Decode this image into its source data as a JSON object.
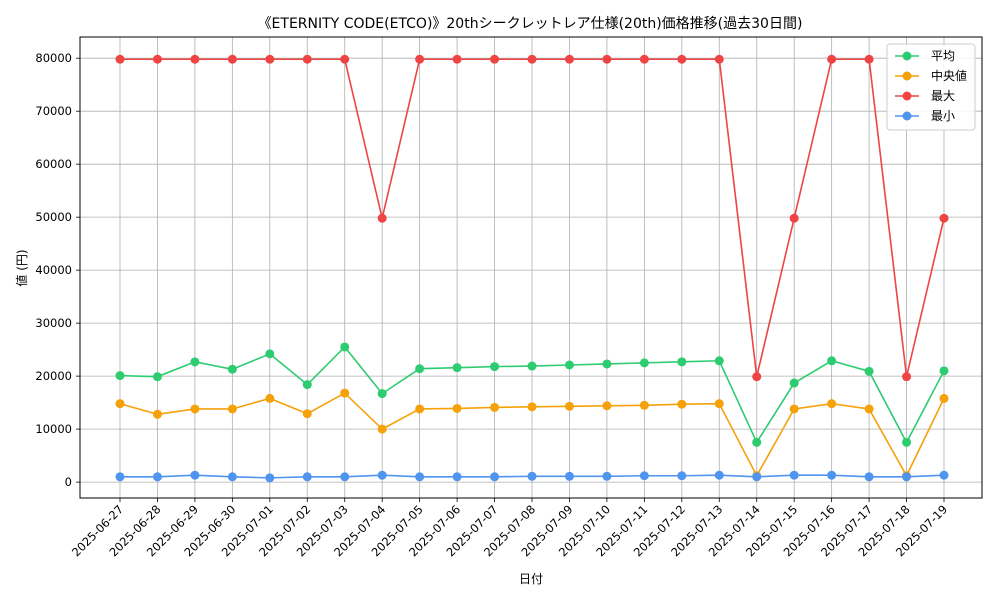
{
  "chart_data": {
    "type": "line",
    "title": "《ETERNITY CODE(ETCO)》20thシークレットレア仕様(20th)価格推移(過去30日間)",
    "xlabel": "日付",
    "ylabel": "値 (円)",
    "ylim": [
      -3000,
      84000
    ],
    "yticks": [
      0,
      10000,
      20000,
      30000,
      40000,
      50000,
      60000,
      70000,
      80000
    ],
    "grid": true,
    "legend_position": "top-right",
    "categories": [
      "2025-06-27",
      "2025-06-28",
      "2025-06-29",
      "2025-06-30",
      "2025-07-01",
      "2025-07-02",
      "2025-07-03",
      "2025-07-04",
      "2025-07-05",
      "2025-07-06",
      "2025-07-07",
      "2025-07-08",
      "2025-07-09",
      "2025-07-10",
      "2025-07-11",
      "2025-07-12",
      "2025-07-13",
      "2025-07-14",
      "2025-07-15",
      "2025-07-16",
      "2025-07-17",
      "2025-07-18",
      "2025-07-19"
    ],
    "series": [
      {
        "name": "平均",
        "color": "#2ecc71",
        "values": [
          20100,
          19900,
          22700,
          21300,
          24200,
          18400,
          25500,
          16700,
          21400,
          21600,
          21800,
          21900,
          22100,
          22300,
          22500,
          22700,
          22900,
          7500,
          18700,
          22900,
          20900,
          7500,
          21000
        ]
      },
      {
        "name": "中央値",
        "color": "#f5a10a",
        "values": [
          14800,
          12800,
          13800,
          13800,
          15800,
          12900,
          16800,
          10000,
          13800,
          13900,
          14100,
          14200,
          14300,
          14400,
          14500,
          14700,
          14800,
          1200,
          13800,
          14800,
          13800,
          1200,
          15800
        ]
      },
      {
        "name": "最大",
        "color": "#ef4444",
        "values": [
          79800,
          79800,
          79800,
          79800,
          79800,
          79800,
          79800,
          49800,
          79800,
          79800,
          79800,
          79800,
          79800,
          79800,
          79800,
          79800,
          79800,
          19900,
          49800,
          79800,
          79800,
          19900,
          49800
        ]
      },
      {
        "name": "最小",
        "color": "#4f95f0",
        "values": [
          1000,
          1000,
          1300,
          1000,
          800,
          1000,
          1000,
          1300,
          1000,
          1000,
          1000,
          1100,
          1100,
          1100,
          1200,
          1200,
          1300,
          1000,
          1300,
          1300,
          1000,
          1000,
          1300
        ]
      }
    ]
  }
}
